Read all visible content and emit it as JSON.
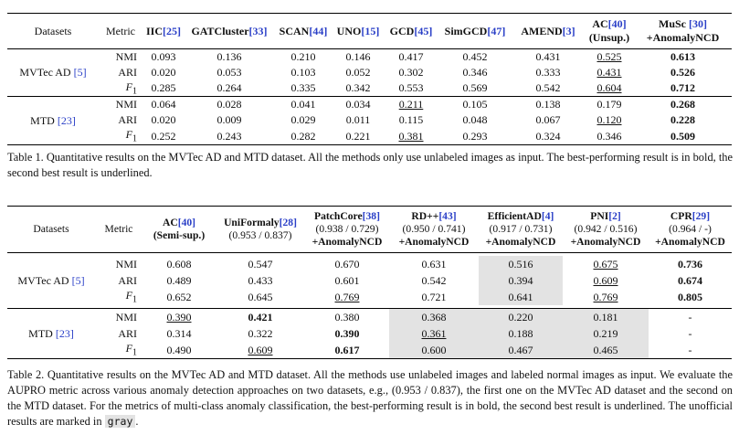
{
  "table1": {
    "headers": {
      "datasets": "Datasets",
      "metric": "Metric",
      "methods": [
        {
          "name": "IIC",
          "cite": "[25]"
        },
        {
          "name": "GATCluster",
          "cite": "[33]"
        },
        {
          "name": "SCAN",
          "cite": "[44]"
        },
        {
          "name": "UNO",
          "cite": "[15]"
        },
        {
          "name": "GCD",
          "cite": "[45]"
        },
        {
          "name": "SimGCD",
          "cite": "[47]"
        },
        {
          "name": "AMEND",
          "cite": "[3]"
        },
        {
          "name": "AC",
          "cite": "[40]",
          "sub": "(Unsup.)"
        },
        {
          "name": "MuSc ",
          "cite": "[30]",
          "sub": "+AnomalyNCD"
        }
      ]
    },
    "groups": [
      {
        "dataset": "MVTec AD ",
        "cite": "[5]",
        "rows": [
          {
            "metric": "NMI",
            "values": [
              "0.093",
              "0.136",
              "0.210",
              "0.146",
              "0.417",
              "0.452",
              "0.431",
              "0.525",
              "0.613"
            ]
          },
          {
            "metric": "ARI",
            "values": [
              "0.020",
              "0.053",
              "0.103",
              "0.052",
              "0.302",
              "0.346",
              "0.333",
              "0.431",
              "0.526"
            ]
          },
          {
            "metric": "F",
            "metric_sub": "1",
            "values": [
              "0.285",
              "0.264",
              "0.335",
              "0.342",
              "0.553",
              "0.569",
              "0.542",
              "0.604",
              "0.712"
            ]
          }
        ]
      },
      {
        "dataset": "MTD ",
        "cite": "[23]",
        "rows": [
          {
            "metric": "NMI",
            "values": [
              "0.064",
              "0.028",
              "0.041",
              "0.034",
              "0.211",
              "0.105",
              "0.138",
              "0.179",
              "0.268"
            ]
          },
          {
            "metric": "ARI",
            "values": [
              "0.020",
              "0.009",
              "0.029",
              "0.011",
              "0.115",
              "0.048",
              "0.067",
              "0.120",
              "0.228"
            ]
          },
          {
            "metric": "F",
            "metric_sub": "1",
            "values": [
              "0.252",
              "0.243",
              "0.282",
              "0.221",
              "0.381",
              "0.293",
              "0.324",
              "0.346",
              "0.509"
            ]
          }
        ]
      }
    ],
    "caption": "Table 1. Quantitative results on the MVTec AD and MTD dataset. All the methods only use unlabeled images as input. The best-performing result is in bold, the second best result is underlined."
  },
  "table2": {
    "headers": {
      "datasets": "Datasets",
      "metric": "Metric",
      "methods": [
        {
          "name": "AC",
          "cite": "[40]",
          "line2": "(Semi-sup.)",
          "line3": ""
        },
        {
          "name": "UniFormaly",
          "cite": "[28]",
          "line2": "(0.953 / 0.837)",
          "line3": ""
        },
        {
          "name": "PatchCore",
          "cite": "[38]",
          "line2": "(0.938 / 0.729)",
          "line3": "+AnomalyNCD"
        },
        {
          "name": "RD++",
          "cite": "[43]",
          "line2": "(0.950 / 0.741)",
          "line3": "+AnomalyNCD"
        },
        {
          "name": "EfficientAD",
          "cite": "[4]",
          "line2": "(0.917 / 0.731)",
          "line3": "+AnomalyNCD"
        },
        {
          "name": "PNI",
          "cite": "[2]",
          "line2": "(0.942 / 0.516)",
          "line3": "+AnomalyNCD"
        },
        {
          "name": "CPR",
          "cite": "[29]",
          "line2": "(0.964 / -)",
          "line3": "+AnomalyNCD"
        }
      ]
    },
    "groups": [
      {
        "dataset": "MVTec AD ",
        "cite": "[5]",
        "rows": [
          {
            "metric": "NMI",
            "values": [
              "0.608",
              "0.547",
              "0.670",
              "0.631",
              "0.516",
              "0.675",
              "0.736"
            ]
          },
          {
            "metric": "ARI",
            "values": [
              "0.489",
              "0.433",
              "0.601",
              "0.542",
              "0.394",
              "0.609",
              "0.674"
            ]
          },
          {
            "metric": "F",
            "metric_sub": "1",
            "values": [
              "0.652",
              "0.645",
              "0.769",
              "0.721",
              "0.641",
              "0.769",
              "0.805"
            ]
          }
        ]
      },
      {
        "dataset": "MTD ",
        "cite": "[23]",
        "rows": [
          {
            "metric": "NMI",
            "values": [
              "0.390",
              "0.421",
              "0.380",
              "0.368",
              "0.220",
              "0.181",
              "-"
            ]
          },
          {
            "metric": "ARI",
            "values": [
              "0.314",
              "0.322",
              "0.390",
              "0.361",
              "0.188",
              "0.219",
              "-"
            ]
          },
          {
            "metric": "F",
            "metric_sub": "1",
            "values": [
              "0.490",
              "0.609",
              "0.617",
              "0.600",
              "0.467",
              "0.465",
              "-"
            ]
          }
        ]
      }
    ],
    "caption_main": "Table 2. Quantitative results on the MVTec AD and MTD dataset. All the methods use unlabeled images and labeled normal images as input. We evaluate the AUPRO metric across various anomaly detection approaches on two datasets, e.g., (0.953 / 0.837), the first one on the MVTec AD dataset and the second on the MTD dataset. For the metrics of multi-class anomaly classification, the best-performing result is in bold, the second best result is underlined. The unofficial results are marked in ",
    "caption_gray": "gray",
    "caption_end": "."
  }
}
